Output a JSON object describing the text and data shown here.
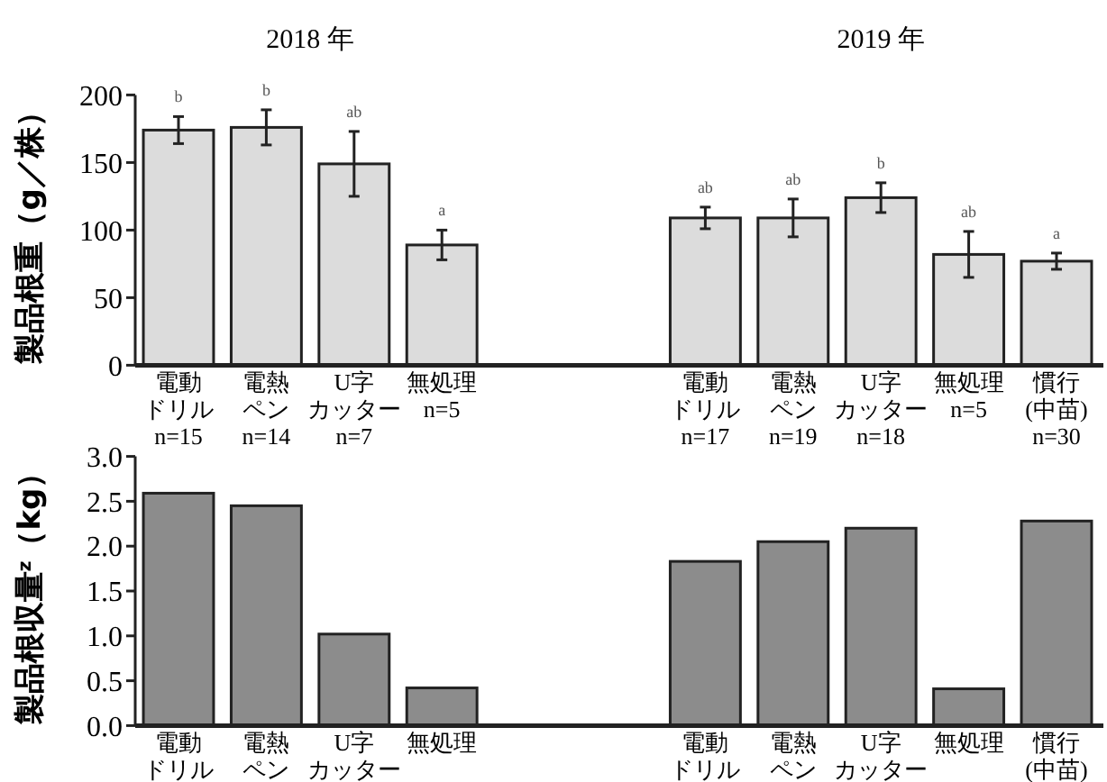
{
  "chart_data": [
    {
      "type": "bar",
      "ylabel": "製品根重（g／株）",
      "categories": [
        "電動ドリルn=15",
        "電熱ペンn=14",
        "U字カッターn=7",
        "無処理n=5",
        null,
        null,
        "電動ドリルn=17",
        "電熱ペンn=19",
        "U字カッターn=18",
        "無処理n=5",
        "慣行(中苗)n=30"
      ],
      "values": [
        174,
        176,
        149,
        89,
        null,
        null,
        109,
        109,
        124,
        82,
        77
      ],
      "errors": [
        10,
        13,
        24,
        11,
        null,
        null,
        8,
        14,
        11,
        17,
        6
      ],
      "color": "#dcdcdc",
      "ylim": [
        0,
        200
      ],
      "yticks": [
        0,
        50,
        100,
        150,
        200
      ],
      "annotations": [
        "2018 年",
        "2019 年",
        "b",
        "b",
        "ab",
        "a",
        "ab",
        "ab",
        "b",
        "ab",
        "a"
      ]
    },
    {
      "type": "bar",
      "ylabel": "製品根収量$^{z}$（kg）",
      "categories": [
        "電動ドリル",
        "電熱ペン",
        "U字カッター",
        "無処理",
        null,
        null,
        "電動ドリル",
        "電熱ペン",
        "U字カッター",
        "無処理",
        "慣行(中苗)"
      ],
      "values": [
        2.59,
        2.45,
        1.02,
        0.42,
        null,
        null,
        1.83,
        2.05,
        2.2,
        0.41,
        2.28
      ],
      "color": "#8c8c8c",
      "ylim": [
        0,
        3
      ],
      "yticks": [
        {
          "value": 0,
          "label": "0.0"
        },
        {
          "value": 0.5,
          "label": "0.5"
        },
        {
          "value": 1,
          "label": "1.0"
        },
        {
          "value": 1.5,
          "label": "1.5"
        },
        {
          "value": 2,
          "label": "2.0"
        },
        {
          "value": 2.5,
          "label": "2.5"
        },
        {
          "value": 3,
          "label": "3.0"
        }
      ]
    }
  ]
}
